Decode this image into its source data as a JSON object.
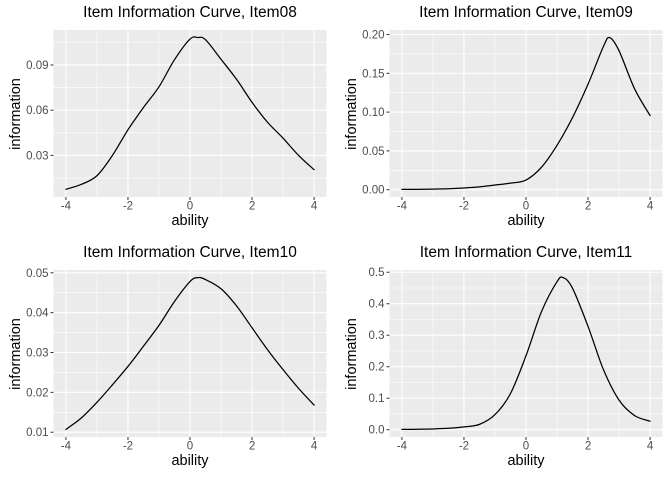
{
  "figure": {
    "background": "#ffffff",
    "panel_background": "#ebebeb",
    "grid_color": "#ffffff",
    "curve_color": "#000000",
    "tick_mark_color": "#333333",
    "tick_label_color": "#4d4d4d",
    "title_color": "#000000"
  },
  "chart_data": [
    {
      "type": "line",
      "title": "Item Information Curve, Item08",
      "xlabel": "ability",
      "ylabel": "information",
      "xlim": [
        -4.4,
        4.4
      ],
      "ylim": [
        0.0024,
        0.1132
      ],
      "x_ticks": [
        -4,
        -2,
        0,
        2,
        4
      ],
      "x_tick_labels": [
        "-4",
        "-2",
        "0",
        "2",
        "4"
      ],
      "x_minor": [
        -3,
        -1,
        1,
        3
      ],
      "y_ticks": [
        0.03,
        0.06,
        0.09
      ],
      "y_tick_labels": [
        "0.03",
        "0.06",
        "0.09"
      ],
      "y_minor": [
        0.015,
        0.045,
        0.075,
        0.105
      ],
      "grid": true,
      "legend": "none",
      "x": [
        -4,
        -3.5,
        -3,
        -2.5,
        -2,
        -1.5,
        -1,
        -0.5,
        0,
        0.25,
        0.5,
        1,
        1.5,
        2,
        2.5,
        3,
        3.5,
        4
      ],
      "y": [
        0.0075,
        0.0108,
        0.0165,
        0.03,
        0.047,
        0.0618,
        0.0755,
        0.0935,
        0.1072,
        0.1082,
        0.1068,
        0.0938,
        0.0805,
        0.0652,
        0.052,
        0.0414,
        0.03,
        0.0205
      ]
    },
    {
      "type": "line",
      "title": "Item Information Curve, Item09",
      "xlabel": "ability",
      "ylabel": "information",
      "xlim": [
        -4.4,
        4.4
      ],
      "ylim": [
        -0.0094,
        0.2058
      ],
      "x_ticks": [
        -4,
        -2,
        0,
        2,
        4
      ],
      "x_tick_labels": [
        "-4",
        "-2",
        "0",
        "2",
        "4"
      ],
      "x_minor": [
        -3,
        -1,
        1,
        3
      ],
      "y_ticks": [
        0.0,
        0.05,
        0.1,
        0.15,
        0.2
      ],
      "y_tick_labels": [
        "0.00",
        "0.05",
        "0.10",
        "0.15",
        "0.20"
      ],
      "y_minor": [
        0.025,
        0.075,
        0.125,
        0.175
      ],
      "grid": true,
      "legend": "none",
      "x": [
        -4,
        -3.5,
        -3,
        -2.5,
        -2,
        -1.5,
        -1,
        -0.5,
        0,
        0.5,
        1,
        1.5,
        2,
        2.5,
        2.7,
        3,
        3.5,
        4
      ],
      "y": [
        0.0004,
        0.0005,
        0.0008,
        0.0013,
        0.0022,
        0.0036,
        0.006,
        0.0085,
        0.0125,
        0.029,
        0.0572,
        0.093,
        0.136,
        0.185,
        0.196,
        0.179,
        0.13,
        0.0955
      ]
    },
    {
      "type": "line",
      "title": "Item Information Curve, Item10",
      "xlabel": "ability",
      "ylabel": "information",
      "xlim": [
        -4.4,
        4.4
      ],
      "ylim": [
        0.0088,
        0.0507
      ],
      "x_ticks": [
        -4,
        -2,
        0,
        2,
        4
      ],
      "x_tick_labels": [
        "-4",
        "-2",
        "0",
        "2",
        "4"
      ],
      "x_minor": [
        -3,
        -1,
        1,
        3
      ],
      "y_ticks": [
        0.01,
        0.02,
        0.03,
        0.04,
        0.05
      ],
      "y_tick_labels": [
        "0.01",
        "0.02",
        "0.03",
        "0.04",
        "0.05"
      ],
      "y_minor": [
        0.015,
        0.025,
        0.035,
        0.045
      ],
      "grid": true,
      "legend": "none",
      "x": [
        -4,
        -3.5,
        -3,
        -2.5,
        -2,
        -1.5,
        -1,
        -0.5,
        0,
        0.25,
        0.5,
        1,
        1.5,
        2,
        2.5,
        3,
        3.5,
        4
      ],
      "y": [
        0.0107,
        0.0136,
        0.0175,
        0.0219,
        0.0265,
        0.0316,
        0.0368,
        0.0428,
        0.0478,
        0.0488,
        0.0483,
        0.046,
        0.0417,
        0.0362,
        0.0307,
        0.0257,
        0.021,
        0.0168
      ]
    },
    {
      "type": "line",
      "title": "Item Information Curve, Item11",
      "xlabel": "ability",
      "ylabel": "information",
      "xlim": [
        -4.4,
        4.4
      ],
      "ylim": [
        -0.0231,
        0.5071
      ],
      "x_ticks": [
        -4,
        -2,
        0,
        2,
        4
      ],
      "x_tick_labels": [
        "-4",
        "-2",
        "0",
        "2",
        "4"
      ],
      "x_minor": [
        -3,
        -1,
        1,
        3
      ],
      "y_ticks": [
        0.0,
        0.1,
        0.2,
        0.3,
        0.4,
        0.5
      ],
      "y_tick_labels": [
        "0.0",
        "0.1",
        "0.2",
        "0.3",
        "0.4",
        "0.5"
      ],
      "y_minor": [
        0.05,
        0.15,
        0.25,
        0.35,
        0.45
      ],
      "grid": true,
      "legend": "none",
      "x": [
        -4,
        -3.5,
        -3,
        -2.5,
        -2,
        -1.5,
        -1,
        -0.5,
        0,
        0.5,
        1,
        1.2,
        1.5,
        2,
        2.5,
        3,
        3.5,
        4
      ],
      "y": [
        0.001,
        0.0015,
        0.0025,
        0.0045,
        0.009,
        0.017,
        0.048,
        0.115,
        0.235,
        0.375,
        0.47,
        0.483,
        0.449,
        0.328,
        0.19,
        0.094,
        0.045,
        0.027
      ]
    }
  ]
}
